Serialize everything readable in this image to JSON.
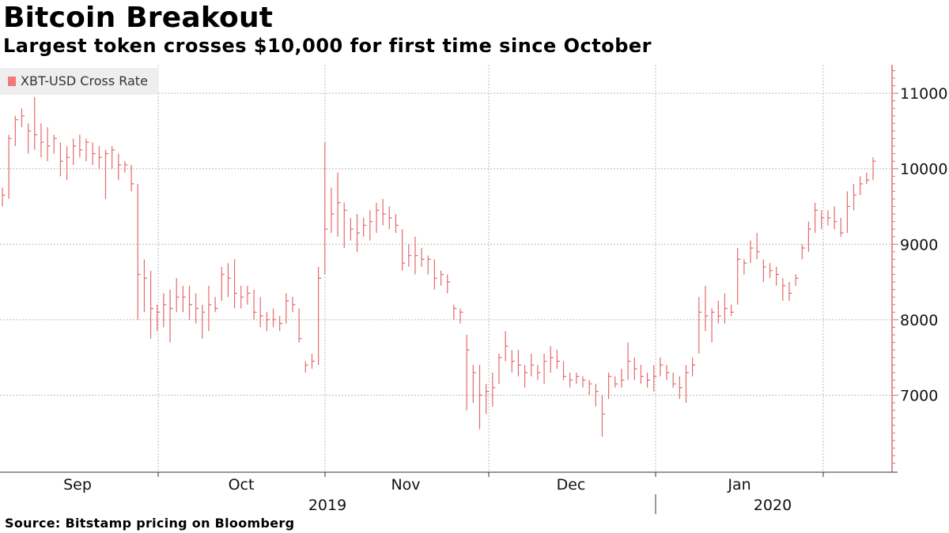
{
  "header": {
    "title": "Bitcoin Breakout",
    "subtitle": "Largest token crosses $10,000 for first time since October"
  },
  "footer": {
    "source": "Source: Bitstamp pricing on Bloomberg"
  },
  "legend": {
    "label": "XBT-USD Cross Rate",
    "color": "#f07a7a"
  },
  "chart_data": {
    "type": "ohlc",
    "title": "Bitcoin Breakout",
    "subtitle": "Largest token crosses $10,000 for first time since October",
    "series": [
      {
        "name": "XBT-USD Cross Rate",
        "color": "#e36a6a"
      }
    ],
    "y_axis": {
      "position": "right",
      "ticks": [
        7000,
        8000,
        9000,
        10000,
        11000
      ],
      "ylim": [
        6000,
        11400
      ]
    },
    "x_axis": {
      "months": [
        "Sep",
        "Oct",
        "Nov",
        "Dec",
        "Jan"
      ],
      "years": [
        "2019",
        "2020"
      ]
    },
    "grid": true,
    "legend_position": "top-left",
    "dates_start": "2019-08-27",
    "dates_end": "2020-02-10",
    "ohlc_high_low_close": [
      [
        9750,
        9500,
        9650
      ],
      [
        10450,
        9600,
        10400
      ],
      [
        10700,
        10300,
        10650
      ],
      [
        10800,
        10550,
        10700
      ],
      [
        10600,
        10200,
        10500
      ],
      [
        10950,
        10250,
        10450
      ],
      [
        10600,
        10150,
        10350
      ],
      [
        10550,
        10100,
        10300
      ],
      [
        10450,
        10200,
        10400
      ],
      [
        10350,
        9900,
        10100
      ],
      [
        10300,
        9850,
        10150
      ],
      [
        10400,
        10050,
        10300
      ],
      [
        10450,
        10150,
        10250
      ],
      [
        10400,
        10100,
        10350
      ],
      [
        10350,
        10050,
        10200
      ],
      [
        10300,
        10000,
        10150
      ],
      [
        10250,
        9600,
        10200
      ],
      [
        10300,
        10000,
        10250
      ],
      [
        10200,
        9850,
        10050
      ],
      [
        10100,
        9950,
        10050
      ],
      [
        10050,
        9700,
        9800
      ],
      [
        9800,
        8000,
        8600
      ],
      [
        8800,
        8100,
        8550
      ],
      [
        8650,
        7750,
        8150
      ],
      [
        8200,
        7850,
        8100
      ],
      [
        8350,
        7900,
        8200
      ],
      [
        8400,
        7700,
        8150
      ],
      [
        8550,
        8100,
        8300
      ],
      [
        8450,
        8100,
        8300
      ],
      [
        8450,
        8000,
        8200
      ],
      [
        8350,
        7950,
        8150
      ],
      [
        8200,
        7750,
        8100
      ],
      [
        8450,
        7850,
        8200
      ],
      [
        8300,
        8100,
        8150
      ],
      [
        8700,
        8250,
        8600
      ],
      [
        8750,
        8300,
        8550
      ],
      [
        8800,
        8150,
        8350
      ],
      [
        8450,
        8150,
        8300
      ],
      [
        8450,
        8200,
        8350
      ],
      [
        8400,
        8000,
        8100
      ],
      [
        8300,
        7900,
        8050
      ],
      [
        8100,
        7850,
        8000
      ],
      [
        8150,
        7900,
        8000
      ],
      [
        8050,
        7850,
        7950
      ],
      [
        8350,
        7950,
        8250
      ],
      [
        8300,
        8100,
        8200
      ],
      [
        8150,
        7700,
        7750
      ],
      [
        7450,
        7300,
        7400
      ],
      [
        7550,
        7350,
        7450
      ],
      [
        8700,
        7400,
        8550
      ],
      [
        10350,
        8600,
        9200
      ],
      [
        9750,
        9150,
        9400
      ],
      [
        9950,
        9100,
        9550
      ],
      [
        9550,
        8950,
        9450
      ],
      [
        9350,
        9050,
        9200
      ],
      [
        9400,
        8900,
        9150
      ],
      [
        9350,
        9100,
        9250
      ],
      [
        9450,
        9050,
        9300
      ],
      [
        9550,
        9150,
        9450
      ],
      [
        9600,
        9250,
        9400
      ],
      [
        9500,
        9200,
        9350
      ],
      [
        9400,
        9150,
        9250
      ],
      [
        9200,
        8650,
        8750
      ],
      [
        9000,
        8700,
        8850
      ],
      [
        9100,
        8600,
        8850
      ],
      [
        8950,
        8700,
        8800
      ],
      [
        8850,
        8600,
        8800
      ],
      [
        8800,
        8400,
        8550
      ],
      [
        8650,
        8450,
        8600
      ],
      [
        8600,
        8350,
        8500
      ],
      [
        8200,
        8000,
        8150
      ],
      [
        8150,
        7950,
        8100
      ],
      [
        7800,
        6800,
        7600
      ],
      [
        7400,
        6900,
        7300
      ],
      [
        7400,
        6550,
        7000
      ],
      [
        7150,
        6750,
        7050
      ],
      [
        7300,
        6850,
        7100
      ],
      [
        7550,
        7150,
        7500
      ],
      [
        7850,
        7450,
        7650
      ],
      [
        7600,
        7300,
        7450
      ],
      [
        7600,
        7250,
        7400
      ],
      [
        7400,
        7100,
        7300
      ],
      [
        7550,
        7250,
        7400
      ],
      [
        7400,
        7200,
        7300
      ],
      [
        7550,
        7150,
        7450
      ],
      [
        7650,
        7300,
        7500
      ],
      [
        7600,
        7350,
        7450
      ],
      [
        7450,
        7200,
        7250
      ],
      [
        7300,
        7100,
        7200
      ],
      [
        7300,
        7150,
        7250
      ],
      [
        7250,
        7100,
        7200
      ],
      [
        7200,
        7000,
        7150
      ],
      [
        7150,
        6850,
        7050
      ],
      [
        7000,
        6450,
        6750
      ],
      [
        7300,
        6950,
        7250
      ],
      [
        7250,
        7100,
        7150
      ],
      [
        7350,
        7100,
        7200
      ],
      [
        7700,
        7200,
        7450
      ],
      [
        7500,
        7200,
        7350
      ],
      [
        7400,
        7150,
        7250
      ],
      [
        7300,
        7100,
        7200
      ],
      [
        7400,
        7050,
        7250
      ],
      [
        7500,
        7250,
        7400
      ],
      [
        7400,
        7200,
        7300
      ],
      [
        7300,
        7100,
        7150
      ],
      [
        7250,
        6950,
        7100
      ],
      [
        7400,
        6900,
        7300
      ],
      [
        7500,
        7250,
        7400
      ],
      [
        8300,
        7550,
        8100
      ],
      [
        8450,
        7850,
        8050
      ],
      [
        8150,
        7700,
        8100
      ],
      [
        8250,
        7950,
        8050
      ],
      [
        8350,
        7950,
        8150
      ],
      [
        8200,
        8050,
        8100
      ],
      [
        8950,
        8200,
        8800
      ],
      [
        8800,
        8600,
        8750
      ],
      [
        9050,
        8750,
        8950
      ],
      [
        9150,
        8800,
        8900
      ],
      [
        8800,
        8500,
        8700
      ],
      [
        8750,
        8550,
        8650
      ],
      [
        8700,
        8450,
        8600
      ],
      [
        8550,
        8250,
        8450
      ],
      [
        8500,
        8250,
        8350
      ],
      [
        8600,
        8450,
        8550
      ],
      [
        9000,
        8800,
        8950
      ],
      [
        9300,
        8900,
        9200
      ],
      [
        9550,
        9150,
        9450
      ],
      [
        9450,
        9200,
        9350
      ],
      [
        9450,
        9250,
        9350
      ],
      [
        9500,
        9200,
        9300
      ],
      [
        9350,
        9100,
        9150
      ],
      [
        9700,
        9150,
        9500
      ],
      [
        9800,
        9450,
        9650
      ],
      [
        9900,
        9650,
        9800
      ],
      [
        9950,
        9800,
        9850
      ],
      [
        10150,
        9850,
        10100
      ]
    ]
  }
}
